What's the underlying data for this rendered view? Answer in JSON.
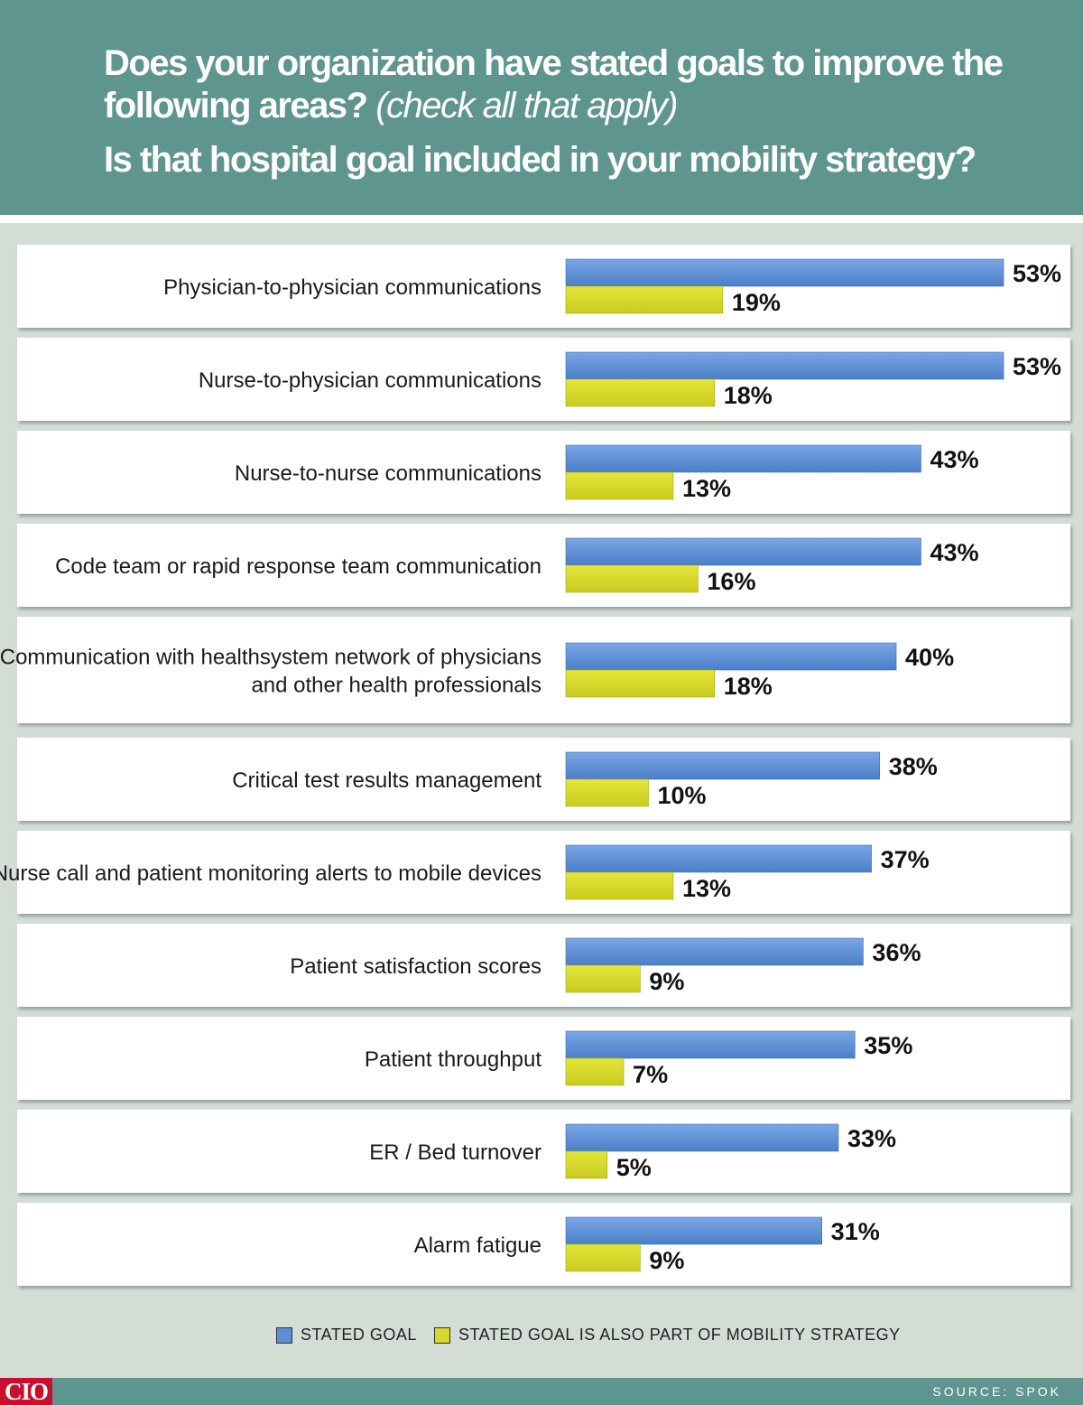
{
  "header": {
    "line1": "Does your organization have stated goals to improve the",
    "line2_main": "following areas?",
    "line2_paren": "(check all that apply)",
    "line3": "Is that hospital goal included in your mobility strategy?"
  },
  "chart_data": {
    "type": "bar",
    "orientation": "horizontal",
    "categories": [
      [
        "Physician-to-physician communications"
      ],
      [
        "Nurse-to-physician communications"
      ],
      [
        "Nurse-to-nurse communications"
      ],
      [
        "Code team or rapid response team communication"
      ],
      [
        "Communication with healthsystem network of physicians",
        "and other health professionals"
      ],
      [
        "Critical test results management"
      ],
      [
        "Nurse call and patient monitoring alerts to mobile devices"
      ],
      [
        "Patient satisfaction scores"
      ],
      [
        "Patient throughput"
      ],
      [
        "ER / Bed turnover"
      ],
      [
        "Alarm fatigue"
      ]
    ],
    "series": [
      {
        "name": "STATED GOAL",
        "color": "#5b8fd6",
        "values": [
          53,
          53,
          43,
          43,
          40,
          38,
          37,
          36,
          35,
          33,
          31
        ]
      },
      {
        "name": "STATED GOAL IS ALSO PART OF MOBILITY STRATEGY",
        "color": "#d6d82a",
        "values": [
          19,
          18,
          13,
          16,
          18,
          10,
          13,
          9,
          7,
          5,
          9
        ]
      }
    ],
    "value_suffix": "%",
    "grid": false,
    "legend_position": "bottom"
  },
  "legend": {
    "items": [
      {
        "label": "STATED GOAL",
        "color": "#5b8fd6"
      },
      {
        "label": "STATED GOAL IS ALSO PART OF MOBILITY STRATEGY",
        "color": "#d6d82a"
      }
    ]
  },
  "footer": {
    "logo": "CIO",
    "source": "SOURCE: SPOK"
  }
}
